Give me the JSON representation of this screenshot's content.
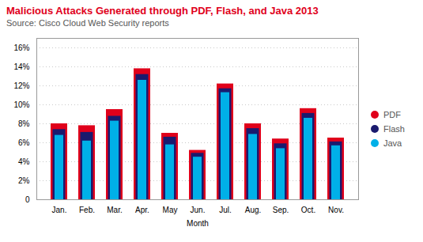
{
  "chart_data": {
    "type": "bar",
    "title": "Malicious Attacks Generated through PDF, Flash, and Java 2013",
    "subtitle": "Source: Cisco Cloud Web Security reports",
    "xlabel": "Month",
    "categories": [
      "Jan.",
      "Feb.",
      "Mar.",
      "Apr.",
      "May",
      "Jun.",
      "Jul.",
      "Aug.",
      "Sep.",
      "Oct.",
      "Nov."
    ],
    "series": [
      {
        "name": "PDF",
        "color": "#e0001b",
        "values": [
          8.0,
          7.8,
          9.5,
          13.8,
          7.0,
          5.2,
          12.2,
          8.0,
          6.4,
          9.6,
          6.5
        ]
      },
      {
        "name": "Flash",
        "color": "#1a1a6e",
        "values": [
          7.6,
          7.3,
          9.0,
          13.4,
          6.8,
          5.1,
          11.9,
          7.7,
          6.1,
          9.3,
          6.3
        ]
      },
      {
        "name": "Java",
        "color": "#00b0e8",
        "values": [
          7.2,
          6.6,
          8.7,
          13.0,
          6.2,
          4.9,
          11.7,
          7.3,
          5.8,
          9.0,
          6.1
        ]
      }
    ],
    "ylim": [
      0,
      17.0
    ],
    "yticks": [
      0,
      {
        "value": 2,
        "label": "2%"
      },
      {
        "value": 4,
        "label": "4%"
      },
      {
        "value": 6,
        "label": "6%"
      },
      {
        "value": 8,
        "label": "8%"
      },
      {
        "value": 10,
        "label": "10%"
      },
      {
        "value": 12,
        "label": "12%"
      },
      {
        "value": 14,
        "label": "14%"
      },
      {
        "value": 16,
        "label": "16%"
      }
    ],
    "grid": true,
    "legend": "right",
    "stacked": false
  }
}
